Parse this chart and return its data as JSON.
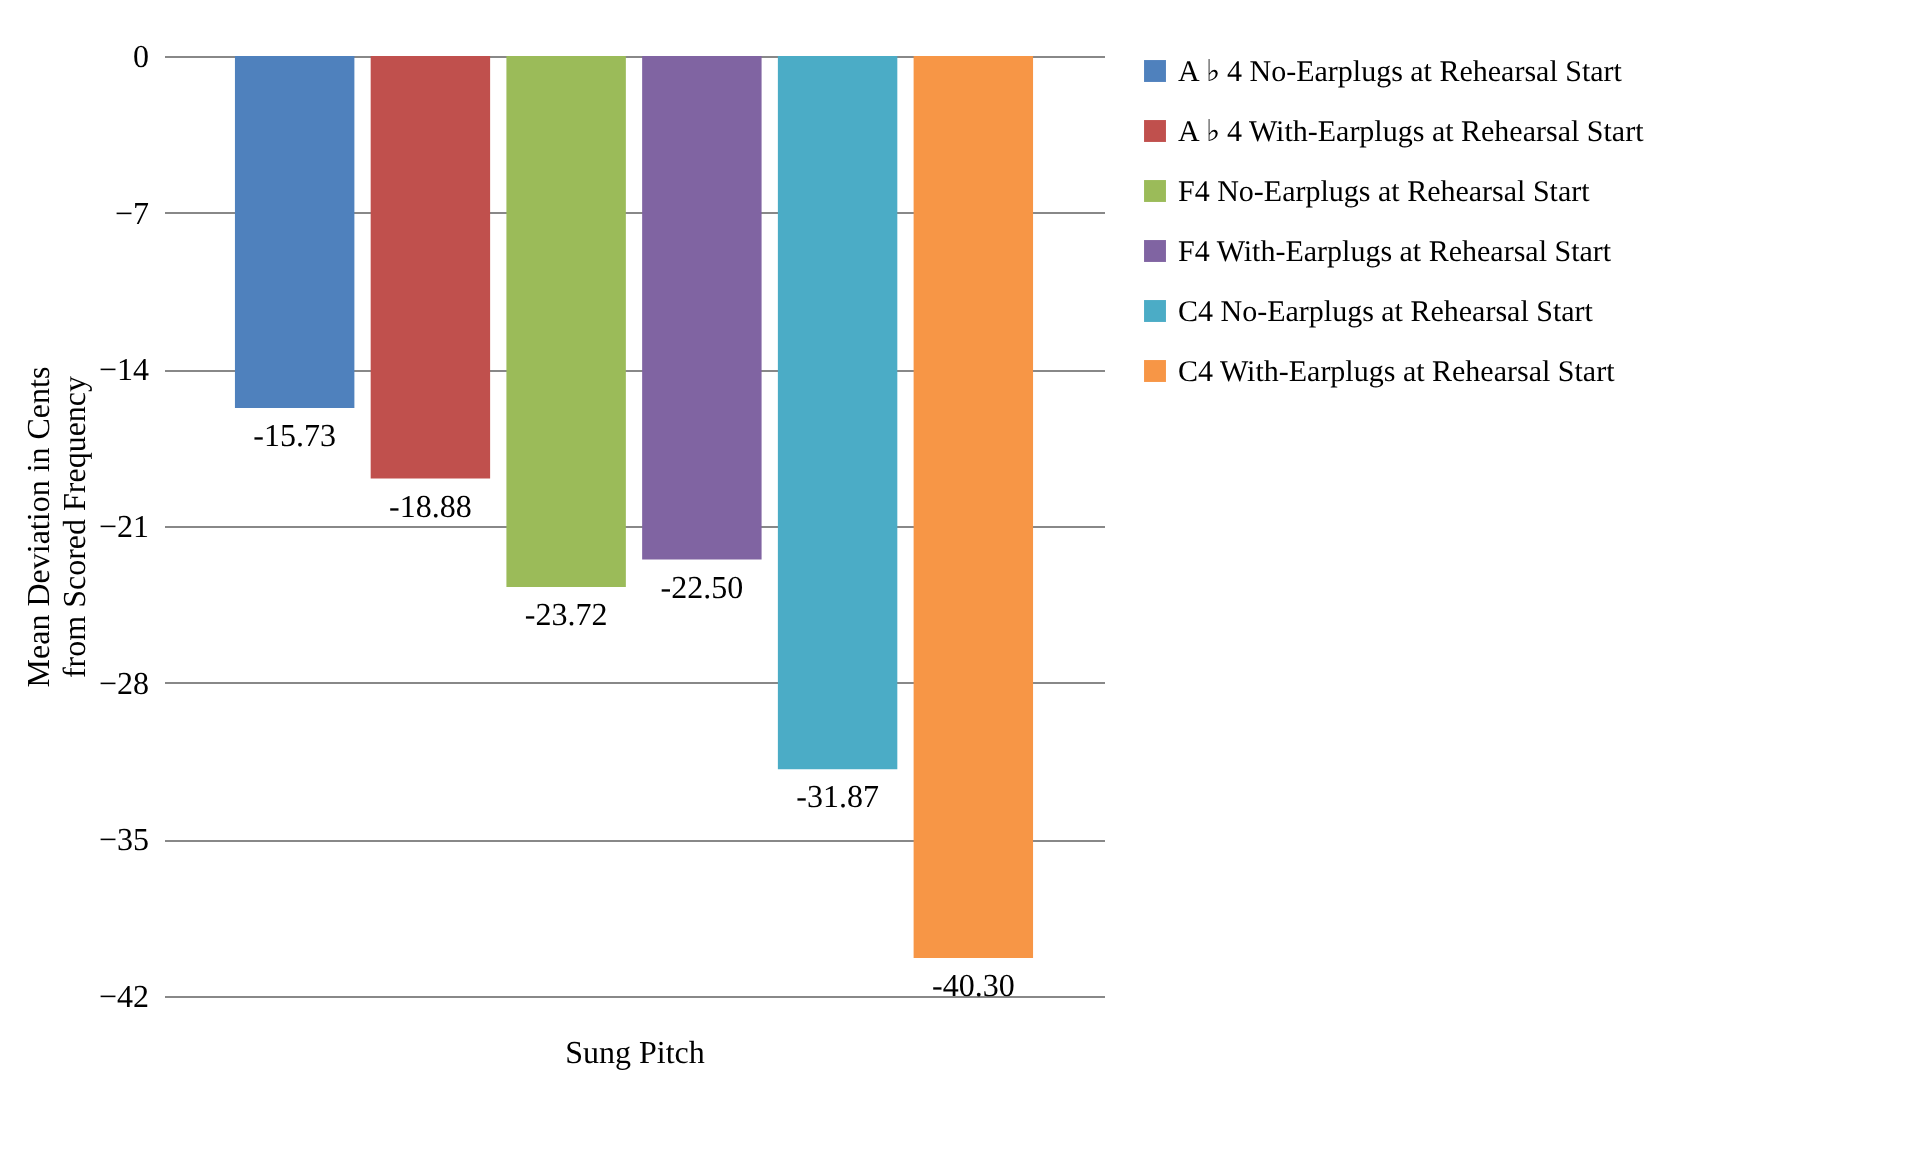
{
  "chart_data": {
    "type": "bar",
    "xlabel": "Sung Pitch",
    "ylabel": "Mean Deviation in Cents from Scored Frequency",
    "categories": [
      null
    ],
    "series": [
      {
        "name": "A ♭ 4 No-Earplugs at Rehearsal Start",
        "color": "#4f81bd",
        "values": [
          -15.73
        ],
        "value_labels": [
          "-15.73"
        ]
      },
      {
        "name": "A ♭ 4 With-Earplugs at Rehearsal Start",
        "color": "#c0504d",
        "values": [
          -18.88
        ],
        "value_labels": [
          "-18.88"
        ]
      },
      {
        "name": "F4 No-Earplugs at Rehearsal Start",
        "color": "#9bbb59",
        "values": [
          -23.72
        ],
        "value_labels": [
          "-23.72"
        ]
      },
      {
        "name": "F4 With-Earplugs at Rehearsal Start",
        "color": "#8064a2",
        "values": [
          -22.5
        ],
        "value_labels": [
          "-22.50"
        ]
      },
      {
        "name": "C4 No-Earplugs at Rehearsal Start",
        "color": "#4bacc6",
        "values": [
          -31.87
        ],
        "value_labels": [
          "-31.87"
        ]
      },
      {
        "name": "C4 With-Earplugs at Rehearsal Start",
        "color": "#f79646",
        "values": [
          -40.3
        ],
        "value_labels": [
          "-40.30"
        ]
      }
    ],
    "ylim": [
      -42,
      0
    ],
    "yticks": [
      0,
      -7,
      -14,
      -21,
      -28,
      -35,
      -42
    ],
    "grid": "y",
    "legend": "right",
    "tick_labels": "y"
  }
}
